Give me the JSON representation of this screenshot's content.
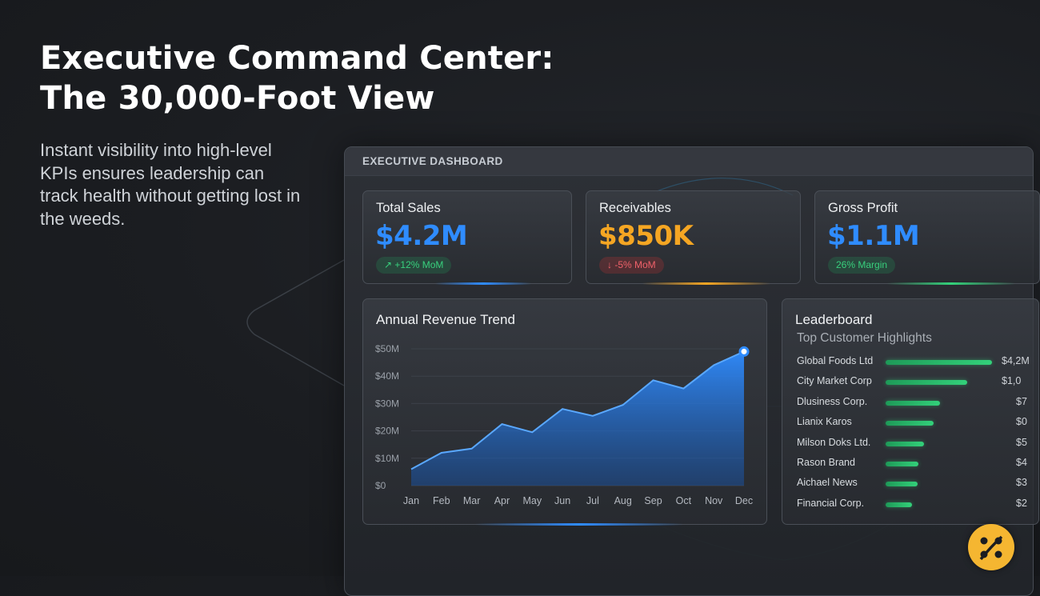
{
  "title_lines": [
    "Executive Command Center:",
    "The 30,000-Foot View"
  ],
  "subtitle": "Instant visibility into high-level KPIs ensures leadership can track health without getting lost in the weeds.",
  "dashboard": {
    "header": "EXECUTIVE DASHBOARD",
    "kpis": [
      {
        "label": "Total Sales",
        "value": "$4.2M",
        "badge": "↗ +12% MoM",
        "trend": "up",
        "color": "#2f8cff"
      },
      {
        "label": "Receivables",
        "value": "$850K",
        "badge": "↓ -5% MoM",
        "trend": "down",
        "color": "#f5a623"
      },
      {
        "label": "Gross Profit",
        "value": "$1.1M",
        "badge": "26% Margin",
        "trend": "up",
        "color": "#2f8cff"
      }
    ],
    "leaderboard": {
      "title": "Leaderboard",
      "subtitle": "Top Customer Highlights",
      "rows": [
        {
          "name": "Global Foods Ltd",
          "value": "$4,2M",
          "share": 1.0
        },
        {
          "name": "City Market Corp",
          "value": "$1,0",
          "share": 0.77
        },
        {
          "name": "Dlusiness Corp.",
          "value": "$7",
          "share": 0.51
        },
        {
          "name": "Lianix Karos",
          "value": "$0",
          "share": 0.45
        },
        {
          "name": "Milson Doks Ltd.",
          "value": "$5",
          "share": 0.36
        },
        {
          "name": "Rason Brand",
          "value": "$4",
          "share": 0.31
        },
        {
          "name": "Aichael News",
          "value": "$3",
          "share": 0.3
        },
        {
          "name": "Financial Corp.",
          "value": "$2",
          "share": 0.25
        }
      ]
    }
  },
  "chart_data": {
    "type": "area",
    "title": "Annual Revenue Trend",
    "categories": [
      "Jan",
      "Feb",
      "Mar",
      "Apr",
      "May",
      "Jun",
      "Jul",
      "Aug",
      "Sep",
      "Oct",
      "Nov",
      "Dec"
    ],
    "series": [
      {
        "name": "Revenue",
        "values": [
          6,
          12,
          13.5,
          22.5,
          19.5,
          28,
          25.5,
          29.5,
          38.5,
          35.5,
          44,
          49
        ]
      }
    ],
    "yticks": [
      "$0",
      "$10M",
      "$20M",
      "$30M",
      "$40M",
      "$50M"
    ],
    "ylim": [
      0,
      50
    ],
    "xlabel": "",
    "ylabel": "",
    "color": "#2f8cff"
  }
}
